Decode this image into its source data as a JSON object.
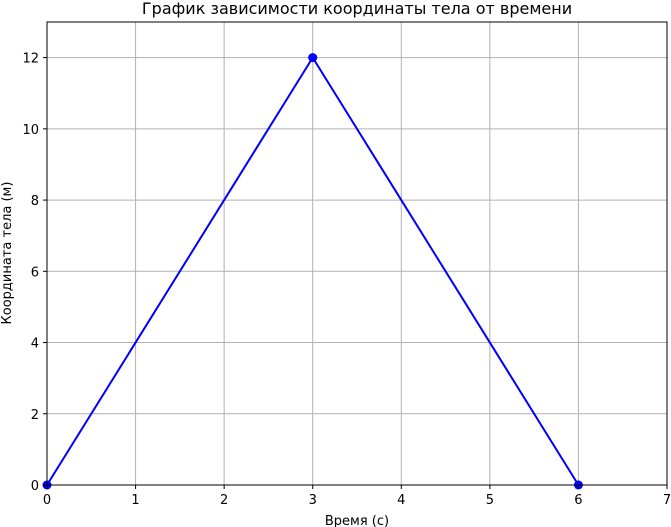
{
  "chart_data": {
    "type": "line",
    "title": "График зависимости координаты тела от времени",
    "xlabel": "Время (с)",
    "ylabel": "Координата тела (м)",
    "xlim": [
      0,
      7
    ],
    "ylim": [
      0,
      13
    ],
    "x_ticks": [
      0,
      1,
      2,
      3,
      4,
      5,
      6,
      7
    ],
    "y_ticks": [
      0,
      2,
      4,
      6,
      8,
      10,
      12
    ],
    "grid": true,
    "series": [
      {
        "color": "#0000ff",
        "marker": "circle",
        "points": [
          {
            "x": 0,
            "y": 0
          },
          {
            "x": 3,
            "y": 12
          },
          {
            "x": 6,
            "y": 0
          }
        ]
      }
    ],
    "colors": {
      "grid": "#b0b0b0",
      "axes": "#000000"
    }
  }
}
